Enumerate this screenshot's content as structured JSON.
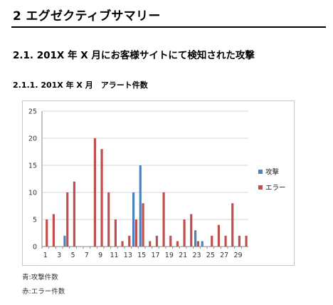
{
  "document": {
    "section_title": "2 エグゼクティブサマリー",
    "subsection_title": "2.1. 201X 年 X 月にお客様サイトにて検知された攻撃",
    "subsubsection_title": "2.1.1. 201X 年 X 月　アラート件数",
    "note_blue": "青:攻撃件数",
    "note_red": "赤:エラー件数"
  },
  "chart_data": {
    "type": "bar",
    "title": "",
    "xlabel": "",
    "ylabel": "",
    "ylim": [
      0,
      25
    ],
    "yticks": [
      0,
      5,
      10,
      15,
      20,
      25
    ],
    "grid": true,
    "legend": "right",
    "x": [
      1,
      2,
      3,
      4,
      5,
      6,
      7,
      8,
      9,
      10,
      11,
      12,
      13,
      14,
      15,
      16,
      17,
      18,
      19,
      20,
      21,
      22,
      23,
      24,
      25,
      26,
      27,
      28,
      29,
      30
    ],
    "x_tick_labels": [
      "1",
      "3",
      "5",
      "7",
      "9",
      "11",
      "13",
      "15",
      "17",
      "19",
      "21",
      "23",
      "25",
      "27",
      "29"
    ],
    "series": [
      {
        "name": "攻撃",
        "color": "#4f81bd",
        "values": [
          0,
          0,
          0,
          2,
          0,
          0,
          0,
          0,
          0,
          0,
          0,
          0,
          0,
          10,
          15,
          0,
          0,
          0,
          0,
          0,
          0,
          0,
          3,
          1,
          0,
          0,
          0,
          0,
          0,
          0
        ]
      },
      {
        "name": "エラー",
        "color": "#c0504d",
        "values": [
          5,
          6,
          0,
          10,
          12,
          0,
          0,
          20,
          18,
          10,
          5,
          1,
          2,
          5,
          8,
          1,
          2,
          10,
          2,
          1,
          5,
          6,
          1,
          0,
          2,
          4,
          2,
          8,
          2,
          2
        ]
      }
    ]
  }
}
